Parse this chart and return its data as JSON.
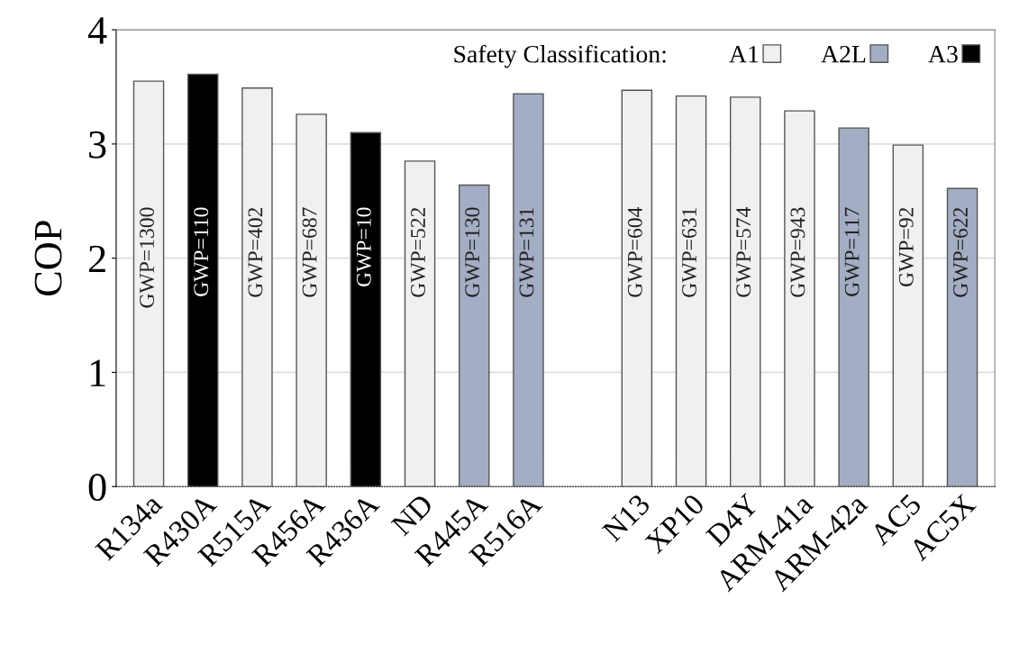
{
  "chart_data": {
    "type": "bar",
    "ylabel": "COP",
    "legend_title": "Safety Classification:",
    "categories": [
      "R134a",
      "R430A",
      "R515A",
      "R456A",
      "R436A",
      "ND",
      "R445A",
      "R516A",
      null,
      "N13",
      "XP10",
      "D4Y",
      "ARM-41a",
      "ARM-42a",
      "AC5",
      "AC5X"
    ],
    "series": [
      {
        "name": "A1",
        "color": "#f0f0f0",
        "values": [
          3.55,
          null,
          3.49,
          3.26,
          null,
          2.85,
          null,
          null,
          null,
          3.47,
          3.42,
          3.41,
          3.29,
          null,
          2.99,
          null
        ]
      },
      {
        "name": "A2L",
        "color": "#a3adc4",
        "values": [
          null,
          null,
          null,
          null,
          null,
          null,
          2.64,
          3.44,
          null,
          null,
          null,
          null,
          null,
          3.14,
          null,
          2.61
        ]
      },
      {
        "name": "A3",
        "color": "#000000",
        "values": [
          null,
          3.61,
          null,
          null,
          3.1,
          null,
          null,
          null,
          null,
          null,
          null,
          null,
          null,
          null,
          null,
          null
        ]
      }
    ],
    "annotations": [
      "GWP=1300",
      "GWP=110",
      "GWP=402",
      "GWP=687",
      "GWP=10",
      "GWP=522",
      "GWP=130",
      "GWP=131",
      "GWP=604",
      "GWP=631",
      "GWP=574",
      "GWP=943",
      "GWP=117",
      "GWP=92",
      "GWP=622"
    ],
    "ylim": [
      0,
      4
    ],
    "yticks": [
      0,
      1,
      2,
      3,
      4
    ],
    "grid": "y",
    "legend": "top right"
  }
}
